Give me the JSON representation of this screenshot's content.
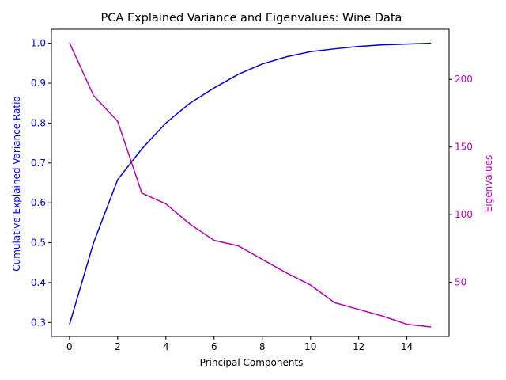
{
  "chart_data": {
    "type": "line",
    "title": "PCA Explained Variance and Eigenvalues: Wine Data",
    "xlabel": "Principal Components",
    "x": [
      0,
      1,
      2,
      3,
      4,
      5,
      6,
      7,
      8,
      9,
      10,
      11,
      12,
      13,
      14,
      15
    ],
    "xlim": [
      -0.75,
      15.75
    ],
    "xticks": [
      0,
      2,
      4,
      6,
      8,
      10,
      12,
      14
    ],
    "ylabel_left": "Cumulative Explained Variance Ratio",
    "ylabel_right": "Eigenvalues",
    "ylim_left": [
      0.265,
      1.035
    ],
    "ylim_right": [
      10,
      237
    ],
    "yticks_left": [
      "0.3",
      "0.4",
      "0.5",
      "0.6",
      "0.7",
      "0.8",
      "0.9",
      "1.0"
    ],
    "yticks_right": [
      "50",
      "100",
      "150",
      "200"
    ],
    "grid": false,
    "legend": "none",
    "series": [
      {
        "axis": "left",
        "color": "#0000cc",
        "values": [
          0.295,
          0.5,
          0.658,
          0.735,
          0.8,
          0.85,
          0.888,
          0.922,
          0.948,
          0.966,
          0.979,
          0.986,
          0.992,
          0.996,
          0.998,
          1.0
        ]
      },
      {
        "axis": "right",
        "color": "#b300b3",
        "values": [
          227,
          188,
          169,
          116,
          108,
          93,
          81,
          77,
          67,
          57,
          48,
          35,
          30,
          25,
          19,
          17
        ]
      }
    ],
    "colors": {
      "left_axis": "#0000ff",
      "right_axis": "#bf00bf",
      "frame": "#000000"
    }
  }
}
